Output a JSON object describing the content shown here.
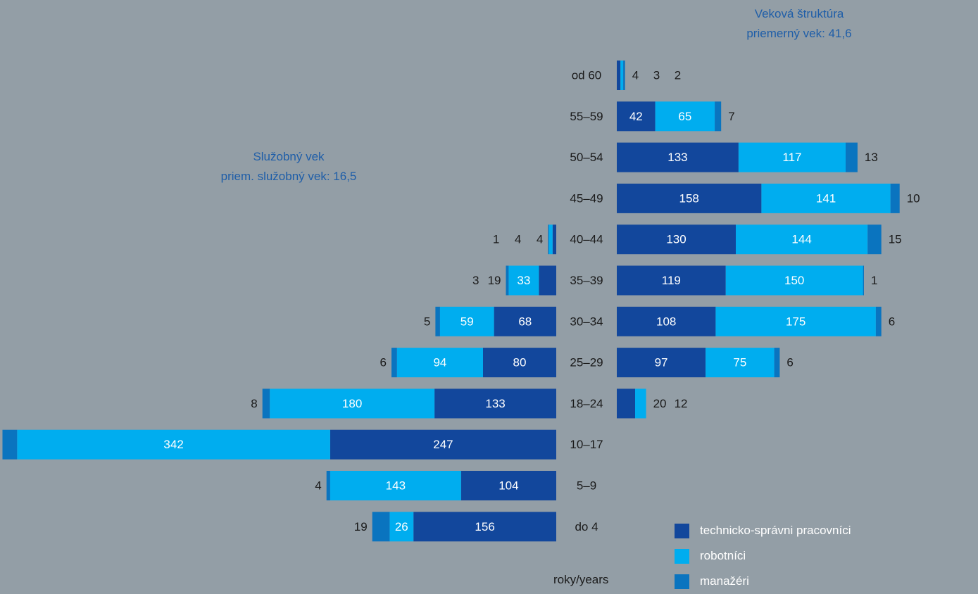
{
  "chart_data": [
    {
      "type": "bar",
      "orientation": "horizontal",
      "stacked": true,
      "title": "Veková štruktúra",
      "subtitle": "priemerný vek: 41,6",
      "categories": [
        "od 60",
        "55–59",
        "50–54",
        "45–49",
        "40–44",
        "35–39",
        "30–34",
        "25–29",
        "18–24"
      ],
      "series": [
        {
          "name": "technicko-správni pracovníci",
          "values": [
            4,
            42,
            133,
            158,
            130,
            119,
            108,
            97,
            20
          ]
        },
        {
          "name": "robotníci",
          "values": [
            3,
            65,
            117,
            141,
            144,
            150,
            175,
            75,
            12
          ]
        },
        {
          "name": "manažéri",
          "values": [
            2,
            7,
            13,
            10,
            15,
            1,
            6,
            6,
            0
          ]
        }
      ]
    },
    {
      "type": "bar",
      "orientation": "horizontal",
      "stacked": true,
      "title": "Služobný vek",
      "subtitle": "priem. služobný vek: 16,5",
      "categories": [
        "40–44",
        "35–39",
        "30–34",
        "25–29",
        "18–24",
        "10–17",
        "5–9",
        "do 4"
      ],
      "series": [
        {
          "name": "technicko-správni pracovníci",
          "values": [
            4,
            19,
            68,
            80,
            133,
            247,
            104,
            156
          ]
        },
        {
          "name": "robotníci",
          "values": [
            4,
            33,
            59,
            94,
            180,
            342,
            143,
            26
          ]
        },
        {
          "name": "manažéri",
          "values": [
            1,
            3,
            5,
            6,
            8,
            16,
            4,
            19
          ]
        }
      ]
    }
  ],
  "labels": {
    "all_categories": [
      "od 60",
      "55–59",
      "50–54",
      "45–49",
      "40–44",
      "35–39",
      "30–34",
      "25–29",
      "18–24",
      "10–17",
      "5–9",
      "do 4"
    ],
    "units": "roky/years"
  },
  "legend": [
    {
      "label": "technicko-správni pracovníci",
      "color": "#12479c"
    },
    {
      "label": "robotníci",
      "color": "#00adef"
    },
    {
      "label": "manažéri",
      "color": "#0a74bf"
    }
  ],
  "colors": {
    "tech": "#12479c",
    "workers": "#00adef",
    "managers": "#0a74bf",
    "background": "#939ea6",
    "heading": "#1f5ea8"
  }
}
